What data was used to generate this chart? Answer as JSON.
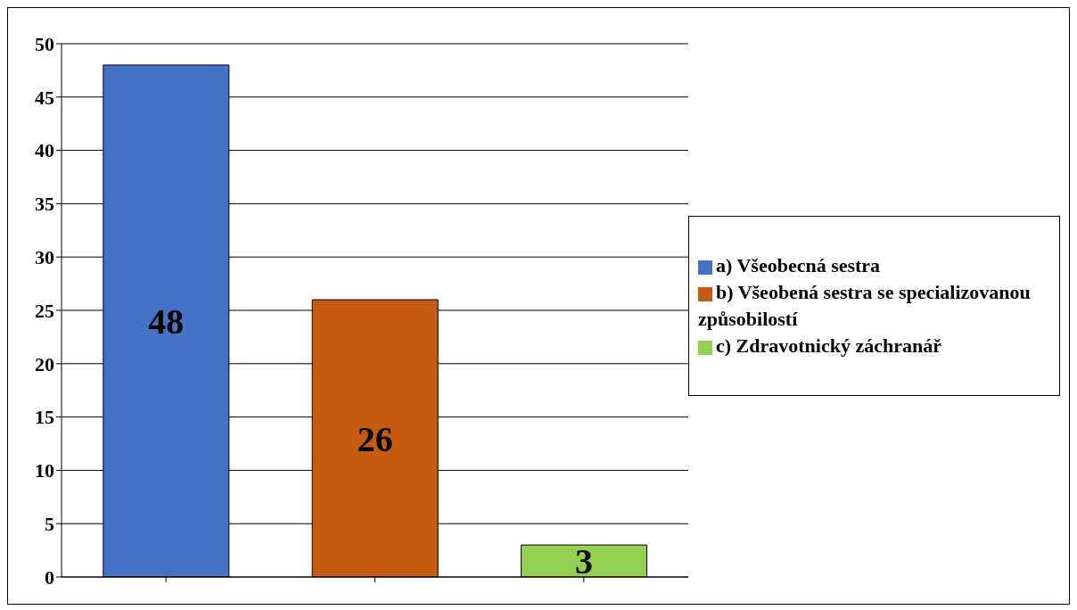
{
  "chart_data": {
    "type": "bar",
    "stacked": true,
    "categories": [
      null,
      null,
      null
    ],
    "series": [
      {
        "name": "a) Všeobecná sestra",
        "color": "#4472c4",
        "values": [
          48,
          null,
          null
        ]
      },
      {
        "name": "b) Všeobená sestra se specializovanou způsobilostí",
        "color": "#c55a11",
        "values": [
          null,
          26,
          null
        ]
      },
      {
        "name": "c) Zdravotnický záchranář",
        "color": "#92d050",
        "values": [
          null,
          null,
          3
        ]
      }
    ],
    "ylim": [
      0,
      50
    ],
    "yticks": [
      0,
      5,
      10,
      15,
      20,
      25,
      30,
      35,
      40,
      45,
      50
    ],
    "grid": "y",
    "legend": "right",
    "data_labels": true
  }
}
